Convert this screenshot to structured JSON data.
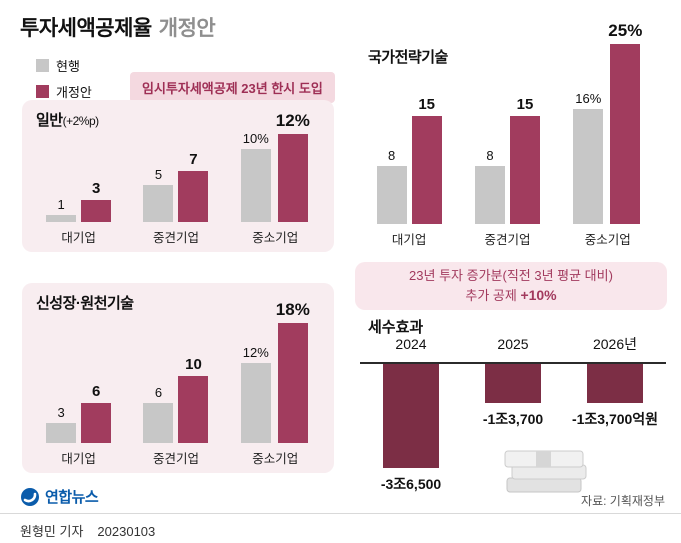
{
  "header": {
    "title_main": "투자세액공제율",
    "title_sub": "개정안",
    "legend": [
      {
        "label": "현행",
        "color": "#c7c7c7"
      },
      {
        "label": "개정안",
        "color": "#a13c5e"
      }
    ],
    "badge": "임시투자세액공제 23년 한시 도입"
  },
  "colors": {
    "current_bar": "#c7c7c7",
    "revised_bar": "#a13c5e",
    "tax_bar": "#7c2e45",
    "panel_bg": "#f8edf0",
    "badge_bg": "#f4d9e0",
    "accent_text": "#9e2f55",
    "logo_blue": "#0b5cab"
  },
  "chart_data": [
    {
      "type": "bar",
      "title": "일반",
      "title_suffix": "(+2%p)",
      "categories": [
        "대기업",
        "중견기업",
        "중소기업"
      ],
      "series": [
        {
          "name": "현행",
          "values": [
            1,
            5,
            10
          ],
          "labels": [
            "1",
            "5",
            "10%"
          ]
        },
        {
          "name": "개정안",
          "values": [
            3,
            7,
            12
          ],
          "labels": [
            "3",
            "7",
            "12%"
          ]
        }
      ],
      "unit": "%",
      "ylim": [
        0,
        12
      ],
      "grid": false,
      "legend_position": "top-left-shared"
    },
    {
      "type": "bar",
      "title": "신성장·원천기술",
      "title_suffix": "",
      "categories": [
        "대기업",
        "중견기업",
        "중소기업"
      ],
      "series": [
        {
          "name": "현행",
          "values": [
            3,
            6,
            12
          ],
          "labels": [
            "3",
            "6",
            "12%"
          ]
        },
        {
          "name": "개정안",
          "values": [
            6,
            10,
            18
          ],
          "labels": [
            "6",
            "10",
            "18%"
          ]
        }
      ],
      "unit": "%",
      "ylim": [
        0,
        18
      ],
      "grid": false
    },
    {
      "type": "bar",
      "title": "국가전략기술",
      "title_suffix": "",
      "categories": [
        "대기업",
        "중견기업",
        "중소기업"
      ],
      "series": [
        {
          "name": "현행",
          "values": [
            8,
            8,
            16
          ],
          "labels": [
            "8",
            "8",
            "16%"
          ]
        },
        {
          "name": "개정안",
          "values": [
            15,
            15,
            25
          ],
          "labels": [
            "15",
            "15",
            "25%"
          ]
        }
      ],
      "unit": "%",
      "ylim": [
        0,
        25
      ],
      "grid": false
    },
    {
      "type": "bar",
      "title": "세수효과",
      "categories": [
        "2024",
        "2025",
        "2026년"
      ],
      "values": [
        -36500,
        -13700,
        -13700
      ],
      "labels": [
        "-3조6,500",
        "-1조3,700",
        "-1조3,700억원"
      ],
      "unit": "억원",
      "ylim": [
        -36500,
        0
      ],
      "grid": false
    }
  ],
  "info_box": {
    "line1": "23년 투자 증가분(직전 3년 평균 대비)",
    "line2_prefix": "추가 공제 ",
    "line2_bold": "+10%"
  },
  "icons": {
    "money": "money-stack-icon",
    "logo": "yonhap-logo-icon"
  },
  "footer": {
    "logo_text": "연합뉴스",
    "source": "자료: 기획재정부",
    "byline": "원형민 기자",
    "date": "20230103"
  }
}
